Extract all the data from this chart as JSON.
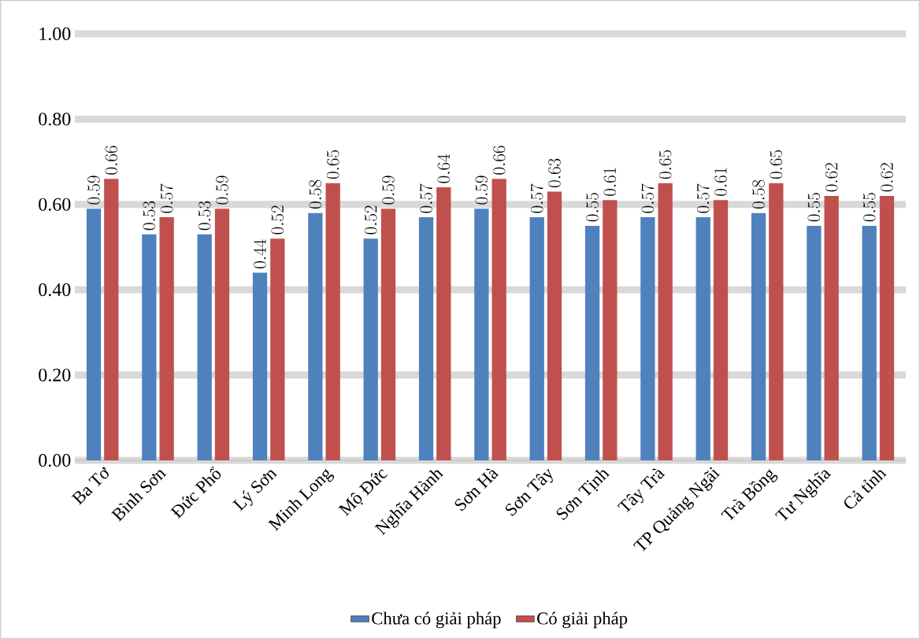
{
  "chart_data": {
    "type": "bar",
    "categories": [
      "Ba Tơ",
      "Bình Sơn",
      "Đức Phổ",
      "Lý Sơn",
      "Minh Long",
      "Mộ Đức",
      "Nghĩa Hành",
      "Sơn Hà",
      "Sơn Tây",
      "Sơn Tịnh",
      "Tây Trà",
      "TP Quảng Ngãi",
      "Trà Bồng",
      "Tư Nghĩa",
      "Cả tỉnh"
    ],
    "series": [
      {
        "name": "Chưa có giải pháp",
        "color": "#4f81bd",
        "values": [
          0.59,
          0.53,
          0.53,
          0.44,
          0.58,
          0.52,
          0.57,
          0.59,
          0.57,
          0.55,
          0.57,
          0.57,
          0.58,
          0.55,
          0.55
        ]
      },
      {
        "name": "Có giải pháp",
        "color": "#c0504d",
        "values": [
          0.66,
          0.57,
          0.59,
          0.52,
          0.65,
          0.59,
          0.64,
          0.66,
          0.63,
          0.61,
          0.65,
          0.61,
          0.65,
          0.62,
          0.62
        ]
      }
    ],
    "ylim": [
      0,
      1
    ],
    "yticks": [
      {
        "value": 0,
        "label": "0.00"
      },
      {
        "value": 0.2,
        "label": "0.20"
      },
      {
        "value": 0.4,
        "label": "0.40"
      },
      {
        "value": 0.6,
        "label": "0.60"
      },
      {
        "value": 0.8,
        "label": "0.80"
      },
      {
        "value": 1,
        "label": "1.00"
      }
    ],
    "grid": "y",
    "legend": "bottom",
    "data_labels": true
  }
}
